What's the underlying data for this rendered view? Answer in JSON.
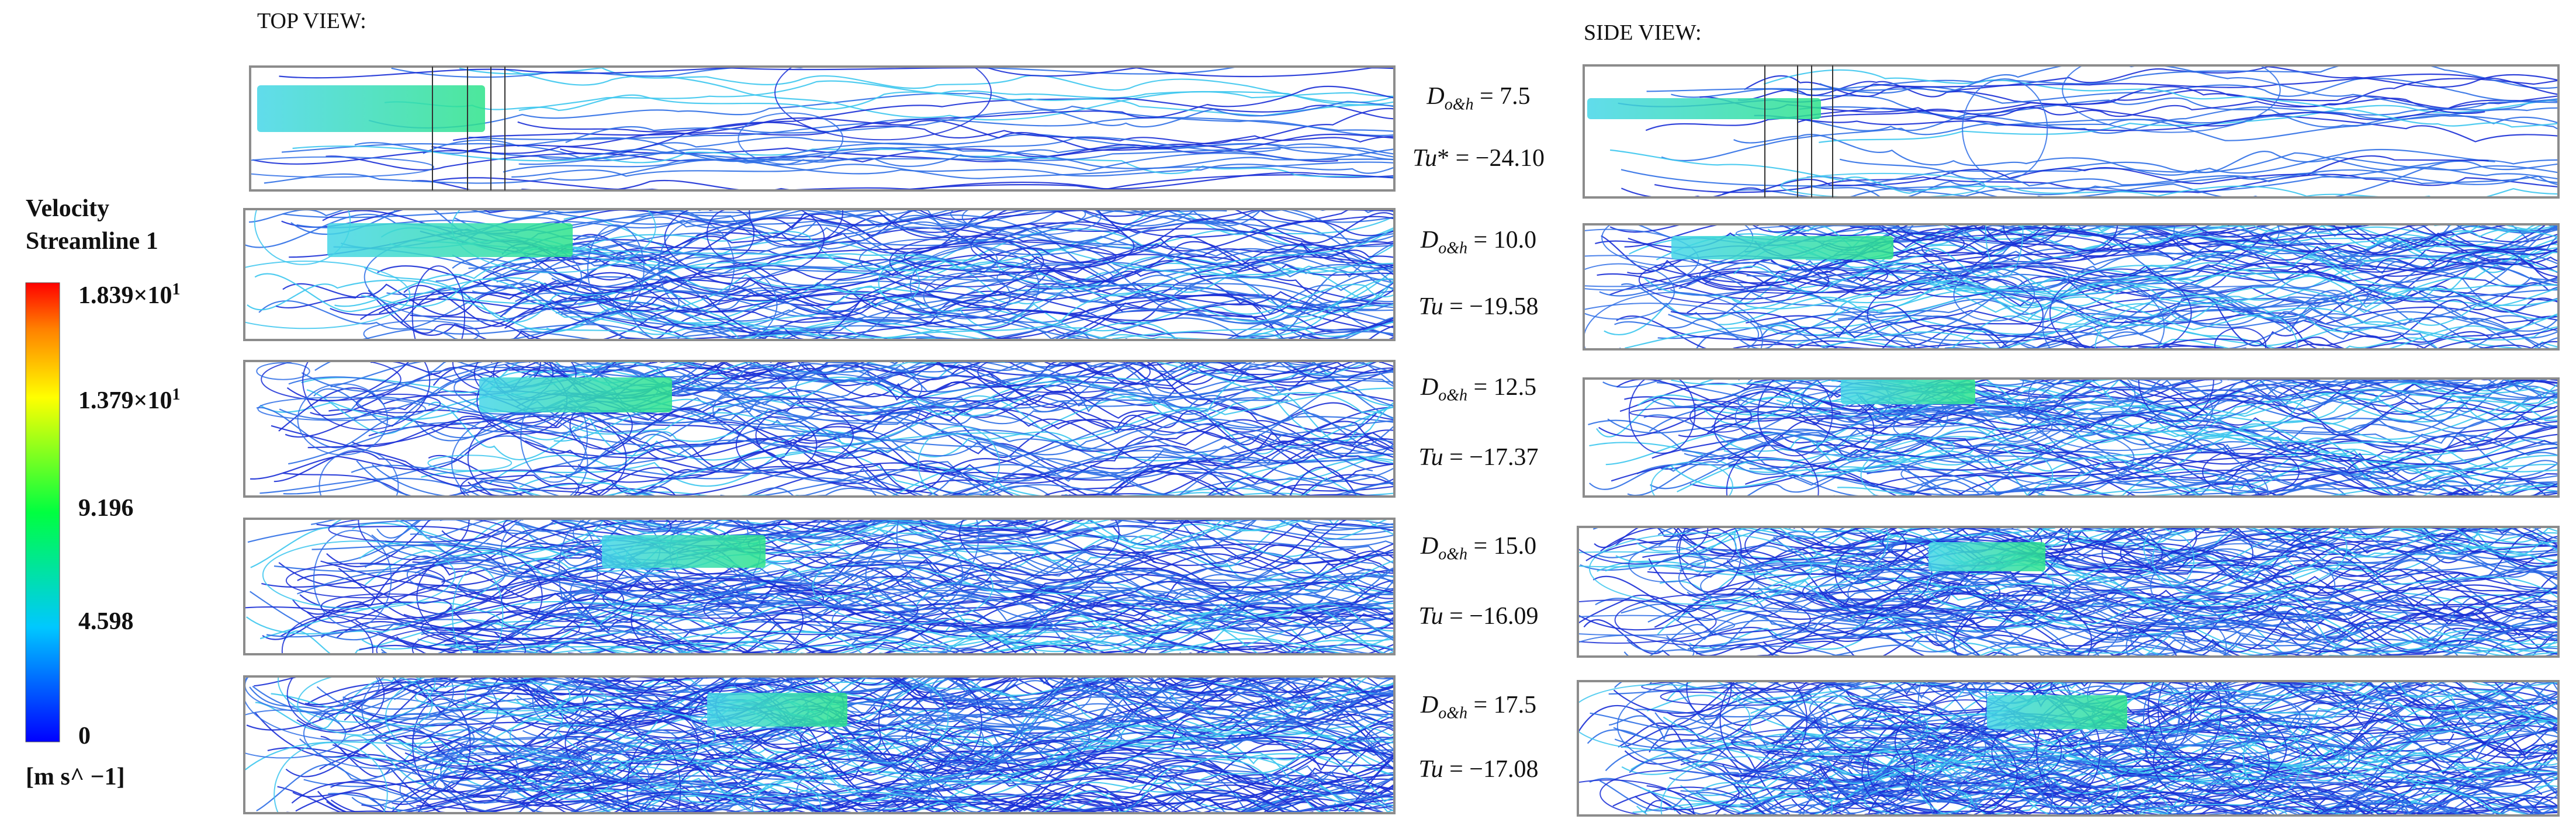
{
  "views": {
    "top": "TOP VIEW:",
    "side": "SIDE VIEW:"
  },
  "legend": {
    "title_line1": "Velocity",
    "title_line2": "Streamline 1",
    "ticks": [
      {
        "mantissa": "1.839",
        "times": "×",
        "base": "10",
        "exp": "1",
        "value": 18.39
      },
      {
        "mantissa": "1.379",
        "times": "×",
        "base": "10",
        "exp": "1",
        "value": 13.79
      },
      {
        "mantissa": "9.196",
        "value": 9.196
      },
      {
        "mantissa": "4.598",
        "value": 4.598
      },
      {
        "mantissa": "0",
        "value": 0
      }
    ],
    "unit": "[m s^ −1]",
    "colors": [
      "#0000ff",
      "#00c8ff",
      "#00ff40",
      "#ffff00",
      "#ff8000",
      "#ff0000"
    ]
  },
  "cases": [
    {
      "d_sym": "D",
      "d_sub": "o&h",
      "d_val": "= 7.5",
      "tu_sym": "Tu",
      "tu_star": "*",
      "tu_val": " = −24.10"
    },
    {
      "d_sym": "D",
      "d_sub": "o&h",
      "d_val": "= 10.0",
      "tu_sym": "Tu",
      "tu_star": "",
      "tu_val": " = −19.58"
    },
    {
      "d_sym": "D",
      "d_sub": "o&h",
      "d_val": "= 12.5",
      "tu_sym": "Tu",
      "tu_star": "",
      "tu_val": " = −17.37"
    },
    {
      "d_sym": "D",
      "d_sub": "o&h",
      "d_val": "= 15.0",
      "tu_sym": "Tu",
      "tu_star": "",
      "tu_val": " = −16.09"
    },
    {
      "d_sym": "D",
      "d_sub": "o&h",
      "d_val": "= 17.5",
      "tu_sym": "Tu",
      "tu_star": "",
      "tu_val": " = −17.08"
    }
  ],
  "colors": {
    "panel_border": "#8c8c8c",
    "streamline_dark": "#1a2fd6",
    "streamline_mid": "#2f6fe6",
    "streamline_light": "#3cc6ee",
    "plume": "#33e0a0"
  }
}
